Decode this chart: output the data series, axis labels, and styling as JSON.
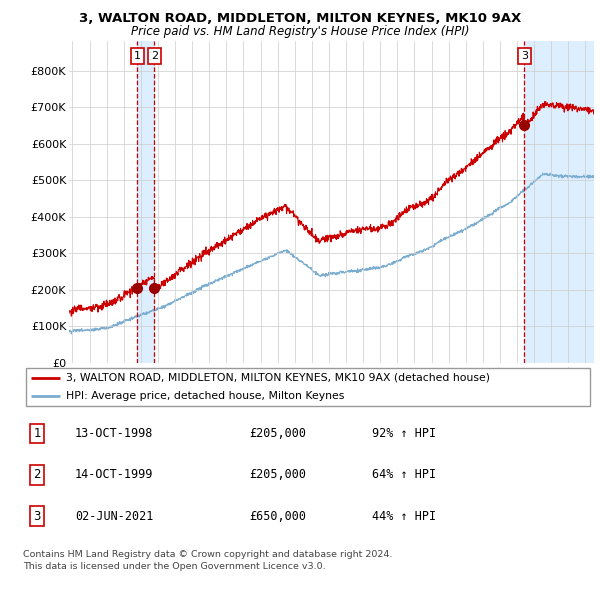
{
  "title1": "3, WALTON ROAD, MIDDLETON, MILTON KEYNES, MK10 9AX",
  "title2": "Price paid vs. HM Land Registry's House Price Index (HPI)",
  "ylabel_ticks": [
    "£0",
    "£100K",
    "£200K",
    "£300K",
    "£400K",
    "£500K",
    "£600K",
    "£700K",
    "£800K"
  ],
  "ytick_values": [
    0,
    100000,
    200000,
    300000,
    400000,
    500000,
    600000,
    700000,
    800000
  ],
  "ylim": [
    0,
    880000
  ],
  "xlim_start": 1994.8,
  "xlim_end": 2025.5,
  "sale_dates": [
    1998.79,
    1999.79,
    2021.42
  ],
  "sale_prices": [
    205000,
    205000,
    650000
  ],
  "sale_labels": [
    "1",
    "2",
    "3"
  ],
  "red_color": "#cc0000",
  "blue_color": "#7aadcf",
  "blue_shade_color": "#ddeeff",
  "vline_color": "#cc0000",
  "dot_color": "#990000",
  "legend_label_red": "3, WALTON ROAD, MIDDLETON, MILTON KEYNES, MK10 9AX (detached house)",
  "legend_label_blue": "HPI: Average price, detached house, Milton Keynes",
  "table_entries": [
    {
      "label": "1",
      "date": "13-OCT-1998",
      "price": "£205,000",
      "pct": "92% ↑ HPI"
    },
    {
      "label": "2",
      "date": "14-OCT-1999",
      "price": "£205,000",
      "pct": "64% ↑ HPI"
    },
    {
      "label": "3",
      "date": "02-JUN-2021",
      "price": "£650,000",
      "pct": "44% ↑ HPI"
    }
  ],
  "footnote1": "Contains HM Land Registry data © Crown copyright and database right 2024.",
  "footnote2": "This data is licensed under the Open Government Licence v3.0.",
  "background_color": "#ffffff",
  "grid_color": "#cccccc"
}
